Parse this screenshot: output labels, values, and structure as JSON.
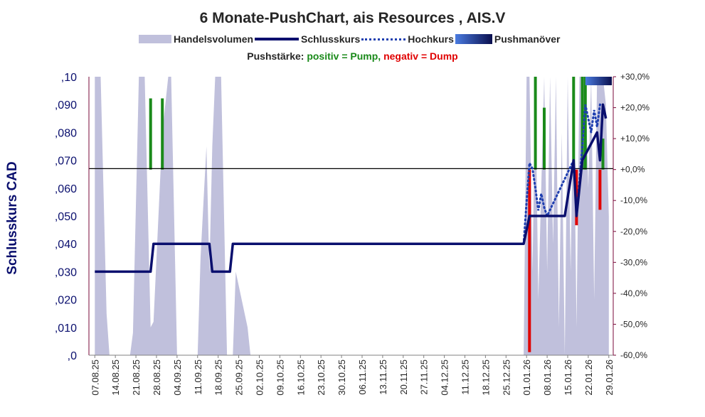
{
  "chart_data": {
    "type": "line",
    "title": "6 Monate-PushChart, ais Resources , AIS.V",
    "subtitle": {
      "prefix": "Pushstärke:",
      "positive": "positiv = Pump,",
      "negative": "negativ = Dump"
    },
    "ylabel": "Schlusskurs CAD",
    "legend": {
      "placement": "top",
      "entries": [
        "Handelsvolumen",
        "Schlusskurs",
        "Hochkurs",
        "Pushmanöver"
      ]
    },
    "colors": {
      "volume": "#c0c0dc",
      "close": "#0a0f6e",
      "high": "#1f3fb0",
      "pump": "#1a8a1a",
      "dump": "#e00000",
      "push_start": "#4a7be0",
      "push_end": "#0a0f4e",
      "left_axis": "#0a0f6e",
      "right_axis": "#7a0a3a"
    },
    "x_ticks": [
      "07.08.25",
      "14.08.25",
      "21.08.25",
      "28.08.25",
      "04.09.25",
      "11.09.25",
      "18.09.25",
      "25.09.25",
      "02.10.25",
      "09.10.25",
      "16.10.25",
      "23.10.25",
      "30.10.25",
      "06.11.25",
      "13.11.25",
      "20.11.25",
      "27.11.25",
      "04.12.25",
      "11.12.25",
      "18.12.25",
      "25.12.25",
      "01.01.26",
      "08.01.26",
      "15.01.26",
      "22.01.26",
      "29.01.26"
    ],
    "y_left": {
      "ticks": [
        ",0",
        ",010",
        ",020",
        ",030",
        ",040",
        ",050",
        ",060",
        ",070",
        ",080",
        ",090",
        ",10"
      ],
      "ylim": [
        0,
        0.1
      ]
    },
    "y_right": {
      "ticks": [
        "-60,0%",
        "-50,0%",
        "-40,0%",
        "-30,0%",
        "-20,0%",
        "-10,0%",
        "+0,0%",
        "+10,0%",
        "+20,0%",
        "+30,0%"
      ],
      "ylim": [
        -60,
        30
      ]
    },
    "zero_line": 0.067,
    "close": [
      [
        "07.08.25",
        0.03
      ],
      [
        "26.08.25",
        0.03
      ],
      [
        "27.08.25",
        0.04
      ],
      [
        "15.09.25",
        0.04
      ],
      [
        "16.09.25",
        0.03
      ],
      [
        "22.09.25",
        0.03
      ],
      [
        "23.09.25",
        0.04
      ],
      [
        "31.12.25",
        0.04
      ],
      [
        "02.01.26",
        0.05
      ],
      [
        "14.01.26",
        0.05
      ],
      [
        "17.01.26",
        0.07
      ],
      [
        "18.01.26",
        0.05
      ],
      [
        "20.01.26",
        0.07
      ],
      [
        "25.01.26",
        0.08
      ],
      [
        "26.01.26",
        0.07
      ],
      [
        "27.01.26",
        0.09
      ],
      [
        "28.01.26",
        0.085
      ]
    ],
    "high": [
      [
        "31.12.25",
        0.04
      ],
      [
        "01.01.26",
        0.055
      ],
      [
        "02.01.26",
        0.069
      ],
      [
        "03.01.26",
        0.067
      ],
      [
        "04.01.26",
        0.06
      ],
      [
        "05.01.26",
        0.052
      ],
      [
        "06.01.26",
        0.058
      ],
      [
        "07.01.26",
        0.053
      ],
      [
        "08.01.26",
        0.05
      ],
      [
        "17.01.26",
        0.07
      ],
      [
        "18.01.26",
        0.05
      ],
      [
        "20.01.26",
        0.075
      ],
      [
        "21.01.26",
        0.09
      ],
      [
        "22.01.26",
        0.085
      ],
      [
        "23.01.26",
        0.08
      ],
      [
        "24.01.26",
        0.088
      ],
      [
        "25.01.26",
        0.082
      ],
      [
        "26.01.26",
        0.09
      ],
      [
        "27.01.26",
        0.09
      ],
      [
        "28.01.26",
        0.085
      ]
    ],
    "volume": [
      [
        "07.08.25",
        0.1
      ],
      [
        "09.08.25",
        0.1
      ],
      [
        "11.08.25",
        0.015
      ],
      [
        "12.08.25",
        0
      ],
      [
        "19.08.25",
        0
      ],
      [
        "20.08.25",
        0.008
      ],
      [
        "22.08.25",
        0.1
      ],
      [
        "24.08.25",
        0.1
      ],
      [
        "26.08.25",
        0.01
      ],
      [
        "27.08.25",
        0.012
      ],
      [
        "30.08.25",
        0.08
      ],
      [
        "01.09.25",
        0.1
      ],
      [
        "02.09.25",
        0.1
      ],
      [
        "04.09.25",
        0
      ],
      [
        "11.09.25",
        0
      ],
      [
        "12.09.25",
        0.035
      ],
      [
        "13.09.25",
        0.055
      ],
      [
        "14.09.25",
        0.075
      ],
      [
        "15.09.25",
        0.03
      ],
      [
        "16.09.25",
        0.075
      ],
      [
        "17.09.25",
        0.1
      ],
      [
        "19.09.25",
        0.1
      ],
      [
        "21.09.25",
        0
      ],
      [
        "23.09.25",
        0
      ],
      [
        "24.09.25",
        0.03
      ],
      [
        "26.09.25",
        0.02
      ],
      [
        "28.09.25",
        0.01
      ],
      [
        "29.09.25",
        0
      ],
      [
        "31.12.25",
        0
      ],
      [
        "01.01.26",
        0.1
      ],
      [
        "02.01.26",
        0.1
      ],
      [
        "03.01.26",
        0.03
      ],
      [
        "04.01.26",
        0.1
      ],
      [
        "05.01.26",
        0.02
      ],
      [
        "06.01.26",
        0.06
      ],
      [
        "07.01.26",
        0.1
      ],
      [
        "08.01.26",
        0.03
      ],
      [
        "09.01.26",
        0.1
      ],
      [
        "10.01.26",
        0.04
      ],
      [
        "11.01.26",
        0.1
      ],
      [
        "12.01.26",
        0.01
      ],
      [
        "13.01.26",
        0.08
      ],
      [
        "14.01.26",
        0.0
      ],
      [
        "15.01.26",
        0.1
      ],
      [
        "16.01.26",
        0.03
      ],
      [
        "17.01.26",
        0.1
      ],
      [
        "18.01.26",
        0.01
      ],
      [
        "19.01.26",
        0.1
      ],
      [
        "20.01.26",
        0.1
      ],
      [
        "21.01.26",
        0.1
      ],
      [
        "22.01.26",
        0.06
      ],
      [
        "23.01.26",
        0.1
      ],
      [
        "24.01.26",
        0.02
      ],
      [
        "25.01.26",
        0.1
      ],
      [
        "26.01.26",
        0.1
      ],
      [
        "27.01.26",
        0.1
      ],
      [
        "28.01.26",
        0.09
      ],
      [
        "29.01.26",
        0.05
      ]
    ],
    "push_strength": [
      [
        "26.08.25",
        23
      ],
      [
        "30.08.25",
        23
      ],
      [
        "02.01.26",
        -59
      ],
      [
        "04.01.26",
        30
      ],
      [
        "07.01.26",
        20
      ],
      [
        "17.01.26",
        30
      ],
      [
        "18.01.26",
        -18
      ],
      [
        "20.01.26",
        30
      ],
      [
        "21.01.26",
        30
      ],
      [
        "26.01.26",
        -13
      ],
      [
        "27.01.26",
        10
      ]
    ],
    "push_period": [
      "21.01.26",
      "30.01.26"
    ]
  }
}
